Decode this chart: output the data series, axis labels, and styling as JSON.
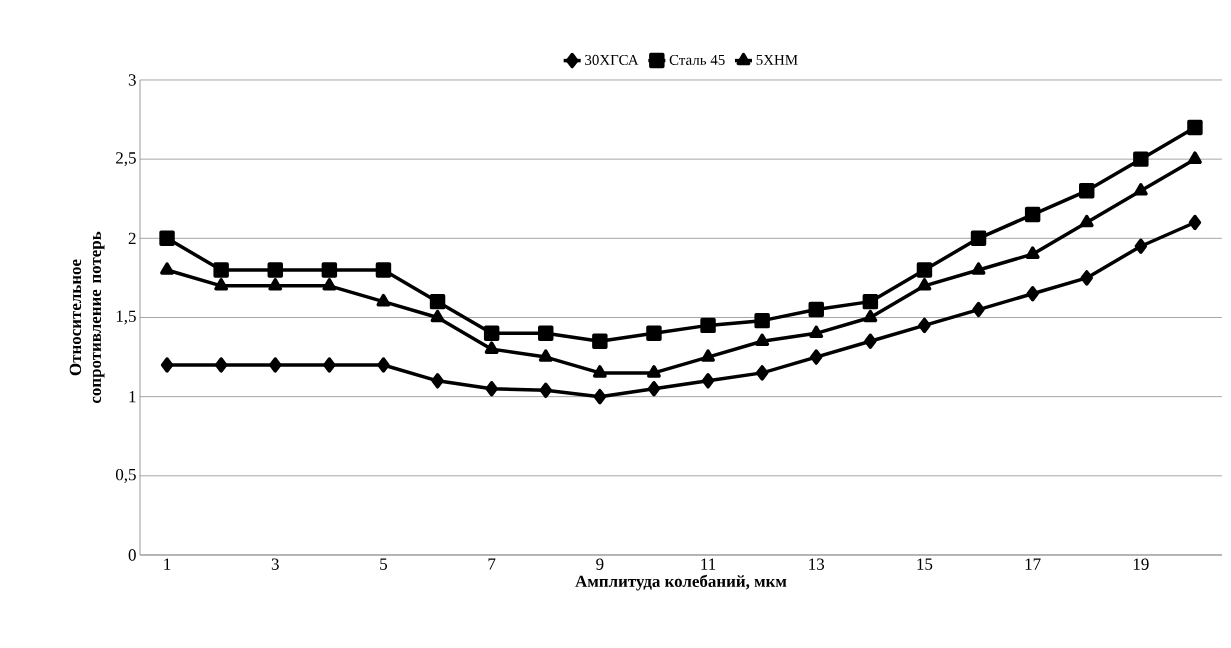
{
  "chart_data": {
    "type": "line",
    "xlabel": "Амплитуда колебаний, мкм",
    "ylabel": "Относительное сопротивление потерь",
    "categories": [
      "1",
      null,
      "3",
      null,
      "5",
      null,
      "7",
      null,
      "9",
      null,
      "11",
      null,
      "13",
      null,
      "15",
      null,
      "17",
      null,
      "19",
      null
    ],
    "series": [
      {
        "name": "30ХГСА",
        "color": "#000000",
        "marker": "diamond",
        "values": [
          1.2,
          1.2,
          1.2,
          1.2,
          1.2,
          1.1,
          1.05,
          1.04,
          1.0,
          1.05,
          1.1,
          1.15,
          1.25,
          1.35,
          1.45,
          1.55,
          1.65,
          1.75,
          1.95,
          2.1
        ]
      },
      {
        "name": "Сталь 45",
        "color": "#000000",
        "marker": "square",
        "values": [
          2.0,
          1.8,
          1.8,
          1.8,
          1.8,
          1.6,
          1.4,
          1.4,
          1.35,
          1.4,
          1.45,
          1.48,
          1.55,
          1.6,
          1.8,
          2.0,
          2.15,
          2.3,
          2.5,
          2.7
        ]
      },
      {
        "name": "5ХНМ",
        "color": "#000000",
        "marker": "triangle",
        "values": [
          1.8,
          1.7,
          1.7,
          1.7,
          1.6,
          1.5,
          1.3,
          1.25,
          1.15,
          1.15,
          1.25,
          1.35,
          1.4,
          1.5,
          1.7,
          1.8,
          1.9,
          2.1,
          2.3,
          2.5
        ]
      }
    ],
    "ylim": [
      0,
      3
    ],
    "yticks": [
      0,
      {
        "value": 0.5,
        "label": "0,5"
      },
      1,
      {
        "value": 1.5,
        "label": "1,5"
      },
      2,
      {
        "value": 2.5,
        "label": "2,5"
      },
      3
    ],
    "grid": "y",
    "legend": "top",
    "line_style": "solid"
  }
}
